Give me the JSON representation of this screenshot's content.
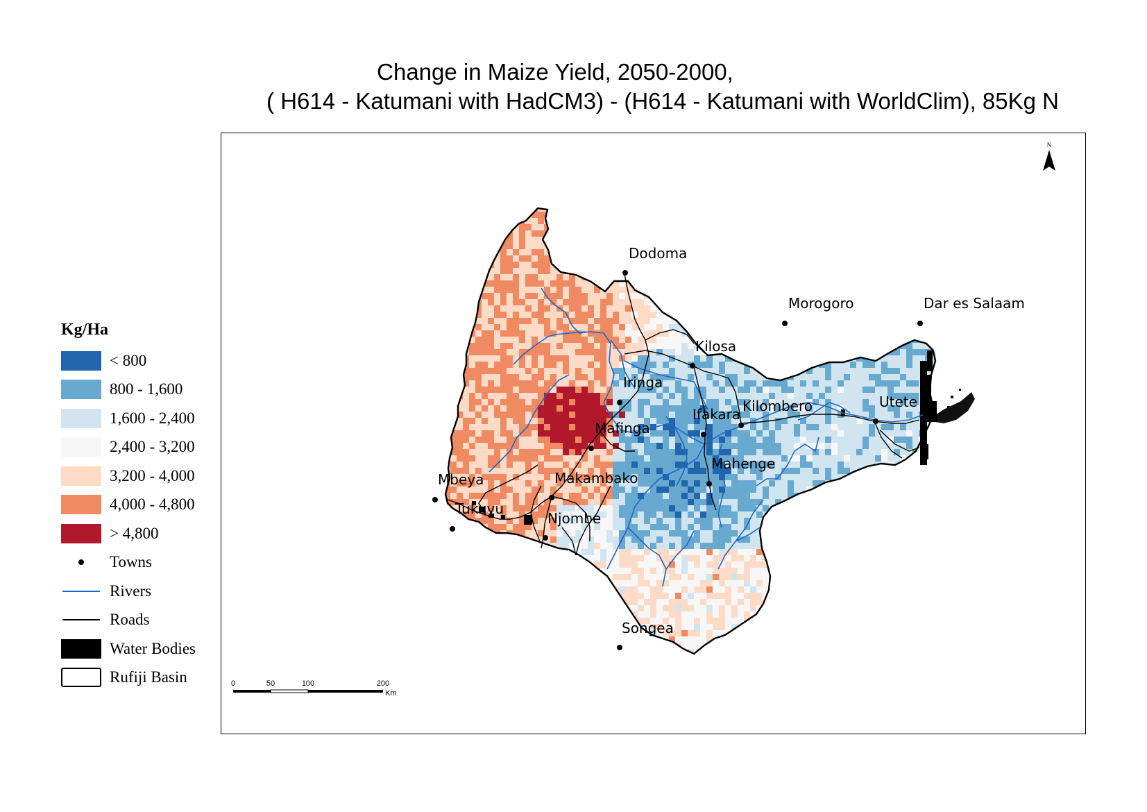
{
  "title": {
    "line1": "Change in Maize Yield, 2050-2000,",
    "line2": "( H614 - Katumani with HadCM3) - (H614 - Katumani with WorldClim), 85Kg N"
  },
  "north_arrow": {
    "label": "N"
  },
  "legend": {
    "title": "Kg/Ha",
    "classes": [
      {
        "label": "< 800",
        "color": "#2166ac"
      },
      {
        "label": "800 - 1,600",
        "color": "#67a9cf"
      },
      {
        "label": "1,600 - 2,400",
        "color": "#d1e5f0"
      },
      {
        "label": "2,400 - 3,200",
        "color": "#f7f7f7"
      },
      {
        "label": "3,200 - 4,000",
        "color": "#fddbc7"
      },
      {
        "label": "4,000 - 4,800",
        "color": "#ef8a62"
      },
      {
        "label": "> 4,800",
        "color": "#b2182b"
      }
    ],
    "towns_label": "Towns",
    "rivers_label": "Rivers",
    "rivers_color": "#2166c9",
    "roads_label": "Roads",
    "water_label": "Water Bodies",
    "basin_label": "Rufiji Basin"
  },
  "towns": [
    {
      "name": "Dodoma"
    },
    {
      "name": "Morogoro"
    },
    {
      "name": "Dar es Salaam"
    },
    {
      "name": "Kilosa"
    },
    {
      "name": "Iringa"
    },
    {
      "name": "Utete"
    },
    {
      "name": "Ifakara"
    },
    {
      "name": "Kilombero"
    },
    {
      "name": "Mafinga"
    },
    {
      "name": "Mahenge"
    },
    {
      "name": "Mbeya"
    },
    {
      "name": "Makambako"
    },
    {
      "name": "Tukuyu"
    },
    {
      "name": "Njombe"
    },
    {
      "name": "Songea"
    }
  ],
  "scale_bar": {
    "ticks": [
      "0",
      "50",
      "100",
      "200"
    ],
    "unit": "Km"
  }
}
